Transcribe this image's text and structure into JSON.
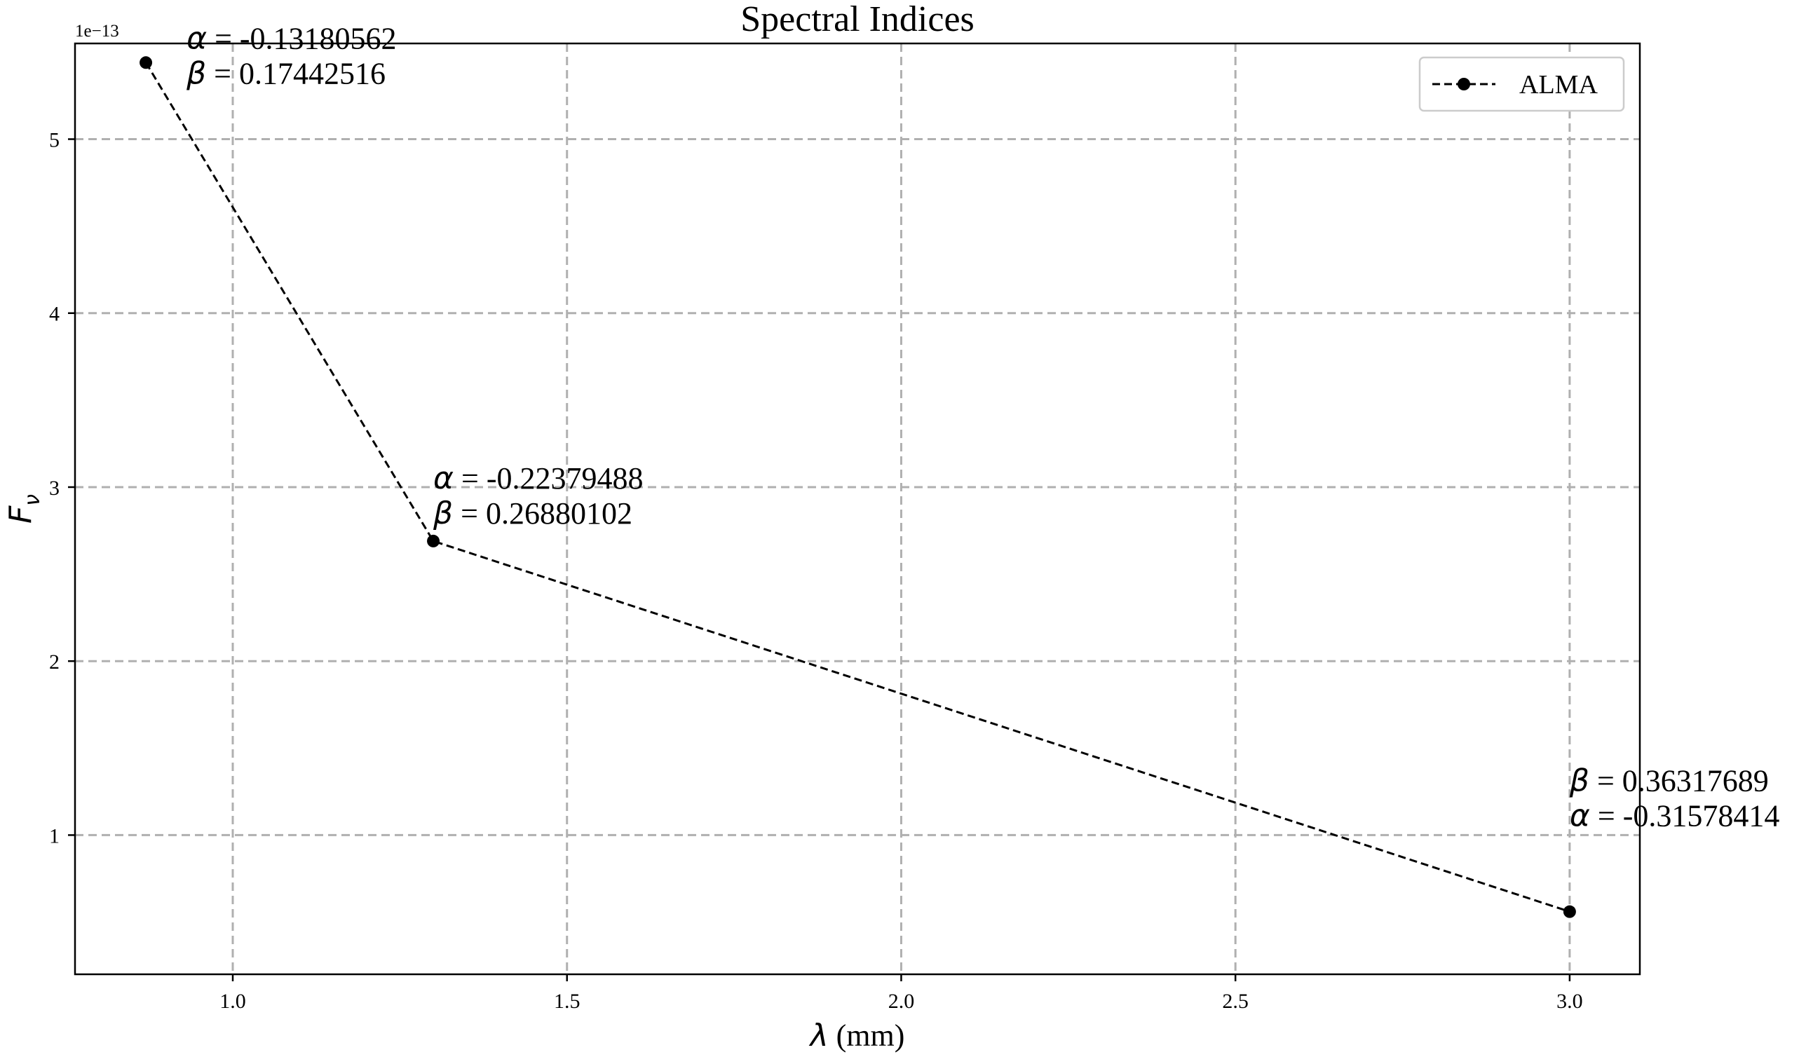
{
  "chart_data": {
    "type": "line",
    "title": "Spectral Indices",
    "xlabel_symbol": "λ",
    "xlabel_unit": " (mm)",
    "ylabel_symbol": "F",
    "ylabel_subscript": "ν",
    "y_offset_label": "1e−13",
    "xlim": [
      0.764,
      3.105
    ],
    "ylim": [
      0.2,
      5.55
    ],
    "xticks": [
      1.0,
      1.5,
      2.0,
      2.5,
      3.0
    ],
    "xtick_labels": [
      "1.0",
      "1.5",
      "2.0",
      "2.5",
      "3.0"
    ],
    "yticks": [
      1,
      2,
      3,
      4,
      5
    ],
    "ytick_labels": [
      "1",
      "2",
      "3",
      "4",
      "5"
    ],
    "grid": true,
    "legend_position": "top-right",
    "series": [
      {
        "name": "ALMA",
        "x": [
          0.87,
          1.3,
          3.0
        ],
        "y": [
          5.44,
          2.69,
          0.56
        ],
        "line_style": "dashed",
        "marker": "circle",
        "color": "#000000"
      }
    ],
    "annotations": [
      {
        "lines": [
          {
            "symbol": "α",
            "text": " = -0.13180562"
          },
          {
            "symbol": "β",
            "text": " = 0.17442516"
          }
        ]
      },
      {
        "lines": [
          {
            "symbol": "α",
            "text": " = -0.22379488"
          },
          {
            "symbol": "β",
            "text": " = 0.26880102"
          }
        ]
      },
      {
        "lines": [
          {
            "symbol": "β",
            "text": " = 0.36317689"
          },
          {
            "symbol": "α",
            "text": " = -0.31578414"
          }
        ]
      }
    ]
  }
}
